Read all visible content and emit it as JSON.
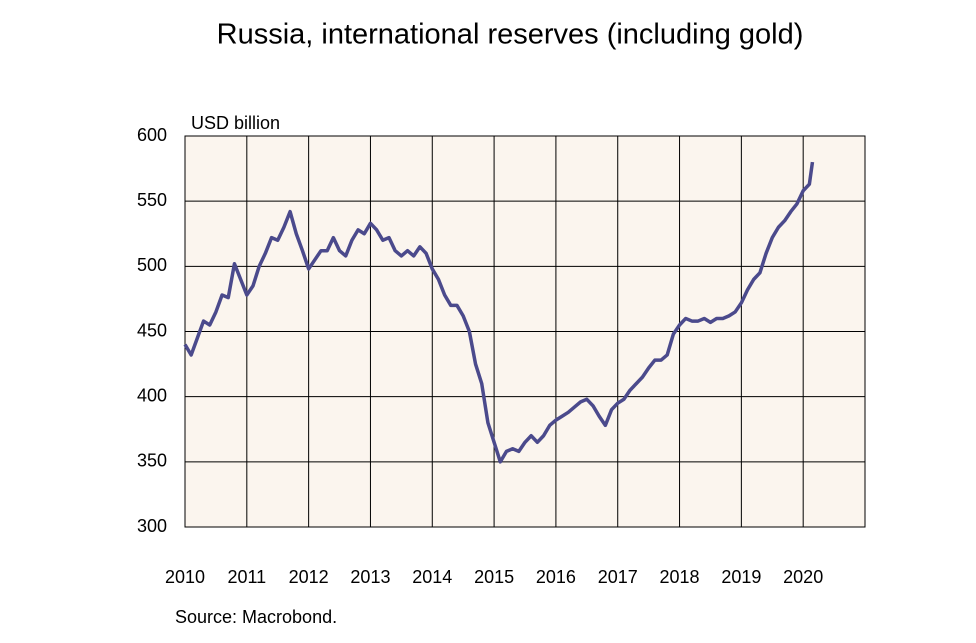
{
  "chart_data": {
    "type": "line",
    "title": "Russia, international reserves (including gold)",
    "y_label": "USD billion",
    "source": "Source: Macrobond.",
    "xlim": [
      2010,
      2021
    ],
    "xticks": [
      2010,
      2011,
      2012,
      2013,
      2014,
      2015,
      2016,
      2017,
      2018,
      2019,
      2020
    ],
    "ylim": [
      300,
      600
    ],
    "yticks": [
      300,
      350,
      400,
      450,
      500,
      550,
      600
    ],
    "grid": true,
    "x": [
      2010.0,
      2010.1,
      2010.2,
      2010.3,
      2010.4,
      2010.5,
      2010.6,
      2010.7,
      2010.8,
      2010.9,
      2011.0,
      2011.1,
      2011.2,
      2011.3,
      2011.4,
      2011.5,
      2011.6,
      2011.7,
      2011.8,
      2011.9,
      2012.0,
      2012.1,
      2012.2,
      2012.3,
      2012.4,
      2012.5,
      2012.6,
      2012.7,
      2012.8,
      2012.9,
      2013.0,
      2013.1,
      2013.2,
      2013.3,
      2013.4,
      2013.5,
      2013.6,
      2013.7,
      2013.8,
      2013.9,
      2014.0,
      2014.1,
      2014.2,
      2014.3,
      2014.4,
      2014.5,
      2014.6,
      2014.7,
      2014.8,
      2014.9,
      2015.0,
      2015.1,
      2015.2,
      2015.3,
      2015.4,
      2015.5,
      2015.6,
      2015.7,
      2015.8,
      2015.9,
      2016.0,
      2016.1,
      2016.2,
      2016.3,
      2016.4,
      2016.5,
      2016.6,
      2016.7,
      2016.8,
      2016.9,
      2017.0,
      2017.1,
      2017.2,
      2017.3,
      2017.4,
      2017.5,
      2017.6,
      2017.7,
      2017.8,
      2017.9,
      2018.0,
      2018.1,
      2018.2,
      2018.3,
      2018.4,
      2018.5,
      2018.6,
      2018.7,
      2018.8,
      2018.9,
      2019.0,
      2019.1,
      2019.2,
      2019.3,
      2019.4,
      2019.5,
      2019.6,
      2019.7,
      2019.8,
      2019.9,
      2020.0,
      2020.1,
      2020.15
    ],
    "series": [
      {
        "name": "Reserves",
        "color": "#4b4a8c",
        "values": [
          440,
          432,
          445,
          458,
          455,
          465,
          478,
          476,
          502,
          490,
          478,
          485,
          500,
          510,
          522,
          520,
          530,
          542,
          525,
          512,
          498,
          505,
          512,
          512,
          522,
          512,
          508,
          520,
          528,
          525,
          533,
          528,
          520,
          522,
          512,
          508,
          512,
          508,
          515,
          510,
          498,
          490,
          478,
          470,
          470,
          462,
          450,
          425,
          410,
          380,
          365,
          350,
          358,
          360,
          358,
          365,
          370,
          365,
          370,
          378,
          382,
          385,
          388,
          392,
          396,
          398,
          393,
          385,
          378,
          390,
          395,
          398,
          405,
          410,
          415,
          422,
          428,
          428,
          432,
          448,
          455,
          460,
          458,
          458,
          460,
          457,
          460,
          460,
          462,
          465,
          472,
          482,
          490,
          495,
          510,
          522,
          530,
          535,
          542,
          548,
          558,
          563,
          580
        ]
      }
    ]
  }
}
